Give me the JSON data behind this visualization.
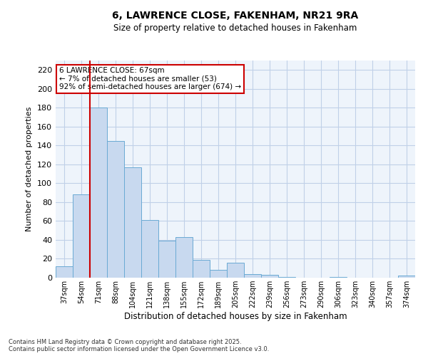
{
  "title_line1": "6, LAWRENCE CLOSE, FAKENHAM, NR21 9RA",
  "title_line2": "Size of property relative to detached houses in Fakenham",
  "xlabel": "Distribution of detached houses by size in Fakenham",
  "ylabel": "Number of detached properties",
  "categories": [
    "37sqm",
    "54sqm",
    "71sqm",
    "88sqm",
    "104sqm",
    "121sqm",
    "138sqm",
    "155sqm",
    "172sqm",
    "189sqm",
    "205sqm",
    "222sqm",
    "239sqm",
    "256sqm",
    "273sqm",
    "290sqm",
    "306sqm",
    "323sqm",
    "340sqm",
    "357sqm",
    "374sqm"
  ],
  "values": [
    12,
    88,
    180,
    145,
    117,
    61,
    39,
    43,
    19,
    8,
    16,
    4,
    3,
    1,
    0,
    0,
    1,
    0,
    0,
    0,
    2
  ],
  "bar_color": "#c8d9ef",
  "bar_edge_color": "#6aaad4",
  "vline_x": 1.5,
  "vline_color": "#cc0000",
  "annotation_title": "6 LAWRENCE CLOSE: 67sqm",
  "annotation_line1": "← 7% of detached houses are smaller (53)",
  "annotation_line2": "92% of semi-detached houses are larger (674) →",
  "annotation_box_color": "#ffffff",
  "annotation_box_edge": "#cc0000",
  "ylim": [
    0,
    230
  ],
  "yticks": [
    0,
    20,
    40,
    60,
    80,
    100,
    120,
    140,
    160,
    180,
    200,
    220
  ],
  "grid_color": "#c0d0e8",
  "plot_bg_color": "#eef4fb",
  "footer_line1": "Contains HM Land Registry data © Crown copyright and database right 2025.",
  "footer_line2": "Contains public sector information licensed under the Open Government Licence v3.0."
}
